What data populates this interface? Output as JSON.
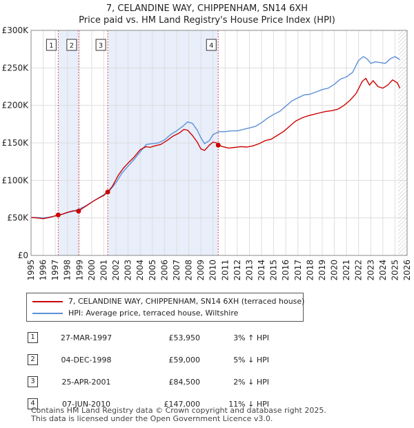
{
  "title_line1": "7, CELANDINE WAY, CHIPPENHAM, SN14 6XH",
  "title_line2": "Price paid vs. HM Land Registry's House Price Index (HPI)",
  "colors": {
    "property": "#cc0000",
    "hpi": "#5b8fd6",
    "band": "#e8eefa",
    "vline": "#e05050"
  },
  "chart_data": {
    "type": "line",
    "title": "Price paid vs. HM Land Registry's House Price Index (HPI)",
    "xlabel": "",
    "ylabel": "",
    "xlim": [
      1995,
      2026
    ],
    "ylim": [
      0,
      300000
    ],
    "y_ticks": [
      0,
      50000,
      100000,
      150000,
      200000,
      250000,
      300000
    ],
    "y_tick_labels": [
      "£0",
      "£50K",
      "£100K",
      "£150K",
      "£200K",
      "£250K",
      "£300K"
    ],
    "x_ticks": [
      1995,
      1996,
      1997,
      1998,
      1999,
      2000,
      2001,
      2002,
      2003,
      2004,
      2005,
      2006,
      2007,
      2008,
      2009,
      2010,
      2011,
      2012,
      2013,
      2014,
      2015,
      2016,
      2017,
      2018,
      2019,
      2020,
      2021,
      2022,
      2023,
      2024,
      2025,
      2026
    ],
    "x_tick_labels": [
      "1995",
      "1996",
      "1997",
      "1998",
      "1999",
      "2000",
      "2001",
      "2002",
      "2003",
      "2004",
      "2005",
      "2006",
      "2007",
      "2008",
      "2009",
      "2010",
      "2011",
      "2012",
      "2013",
      "2014",
      "2015",
      "2016",
      "2017",
      "2018",
      "2019",
      "2020",
      "2021",
      "2022",
      "2023",
      "2024",
      "2025",
      "2026"
    ],
    "grid": true,
    "hatch_start": 2025.25,
    "series": [
      {
        "name": "7, CELANDINE WAY, CHIPPENHAM, SN14 6XH (terraced house)",
        "x": [
          1995,
          1995.5,
          1996,
          1996.5,
          1997.24,
          1997.6,
          1998,
          1998.5,
          1998.92,
          1999.3,
          1999.7,
          2000.2,
          2000.7,
          2001.0,
          2001.32,
          2001.7,
          2002.2,
          2002.6,
          2003.0,
          2003.5,
          2004.0,
          2004.5,
          2004.8,
          2005.2,
          2005.7,
          2006.2,
          2006.7,
          2007.2,
          2007.6,
          2007.9,
          2008.3,
          2008.7,
          2009.0,
          2009.3,
          2009.7,
          2010.0,
          2010.3,
          2010.43,
          2010.8,
          2011.3,
          2011.8,
          2012.3,
          2012.8,
          2013.3,
          2013.8,
          2014.3,
          2014.8,
          2015.3,
          2015.8,
          2016.3,
          2016.8,
          2017.3,
          2017.8,
          2018.3,
          2018.8,
          2019.3,
          2019.8,
          2020.3,
          2020.8,
          2021.3,
          2021.8,
          2022.3,
          2022.6,
          2022.9,
          2023.2,
          2023.6,
          2024.0,
          2024.4,
          2024.8,
          2025.2,
          2025.4
        ],
        "values": [
          50500,
          50000,
          49000,
          50500,
          53950,
          55000,
          57500,
          59500,
          59000,
          63500,
          67500,
          73000,
          77500,
          80000,
          84500,
          92000,
          107000,
          116000,
          123000,
          131000,
          141000,
          145000,
          144000,
          146000,
          148000,
          153000,
          159000,
          163000,
          168000,
          167000,
          160000,
          151000,
          142000,
          140000,
          147000,
          151000,
          150000,
          147000,
          145000,
          143000,
          144000,
          145000,
          144500,
          146000,
          149000,
          153000,
          155000,
          160000,
          165000,
          172000,
          179000,
          183000,
          186000,
          188000,
          190000,
          192000,
          193000,
          195000,
          200000,
          207000,
          216000,
          232000,
          236000,
          227000,
          233000,
          225000,
          223000,
          227000,
          234000,
          230000,
          223000
        ]
      },
      {
        "name": "HPI: Average price, terraced house, Wiltshire",
        "x": [
          1995,
          1995.5,
          1996,
          1996.5,
          1997,
          1997.5,
          1998,
          1998.5,
          1999,
          1999.5,
          2000,
          2000.5,
          2001,
          2001.5,
          2002,
          2002.5,
          2003,
          2003.5,
          2004,
          2004.5,
          2005,
          2005.5,
          2006,
          2006.5,
          2007,
          2007.5,
          2007.9,
          2008.3,
          2008.7,
          2009.0,
          2009.3,
          2009.7,
          2010,
          2010.5,
          2011,
          2011.5,
          2012,
          2012.5,
          2013,
          2013.5,
          2014,
          2014.5,
          2015,
          2015.5,
          2016,
          2016.5,
          2017,
          2017.5,
          2018,
          2018.5,
          2019,
          2019.5,
          2020,
          2020.5,
          2021,
          2021.5,
          2022,
          2022.4,
          2022.7,
          2023.0,
          2023.4,
          2023.8,
          2024.2,
          2024.6,
          2025.0,
          2025.4
        ],
        "values": [
          50500,
          50500,
          50000,
          51000,
          52500,
          54500,
          57000,
          59000,
          62000,
          66000,
          71000,
          76000,
          81000,
          87000,
          97000,
          110000,
          119000,
          128000,
          138000,
          148000,
          149000,
          150000,
          154000,
          161000,
          166000,
          172000,
          178000,
          176000,
          167000,
          157000,
          149000,
          153000,
          161000,
          165000,
          165000,
          166000,
          166000,
          168000,
          170000,
          172000,
          177000,
          183000,
          188000,
          192000,
          199000,
          206000,
          210000,
          214000,
          215000,
          218000,
          221000,
          223000,
          228000,
          235000,
          238000,
          244000,
          260000,
          265000,
          262000,
          256000,
          258000,
          257000,
          256000,
          262000,
          265000,
          261000
        ]
      }
    ],
    "transactions": [
      {
        "num": "1",
        "x": 1997.24,
        "value": 53950
      },
      {
        "num": "2",
        "x": 1998.92,
        "value": 59000
      },
      {
        "num": "3",
        "x": 2001.32,
        "value": 84500
      },
      {
        "num": "4",
        "x": 2010.43,
        "value": 147000
      }
    ]
  },
  "legend": {
    "property": "7, CELANDINE WAY, CHIPPENHAM, SN14 6XH (terraced house)",
    "hpi": "HPI: Average price, terraced house, Wiltshire"
  },
  "transactions_table": [
    {
      "num": "1",
      "date": "27-MAR-1997",
      "price": "£53,950",
      "hpi": "3% ↑ HPI"
    },
    {
      "num": "2",
      "date": "04-DEC-1998",
      "price": "£59,000",
      "hpi": "5% ↓ HPI"
    },
    {
      "num": "3",
      "date": "25-APR-2001",
      "price": "£84,500",
      "hpi": "2% ↓ HPI"
    },
    {
      "num": "4",
      "date": "07-JUN-2010",
      "price": "£147,000",
      "hpi": "11% ↓ HPI"
    }
  ],
  "footer_line1": "Contains HM Land Registry data © Crown copyright and database right 2025.",
  "footer_line2": "This data is licensed under the Open Government Licence v3.0."
}
